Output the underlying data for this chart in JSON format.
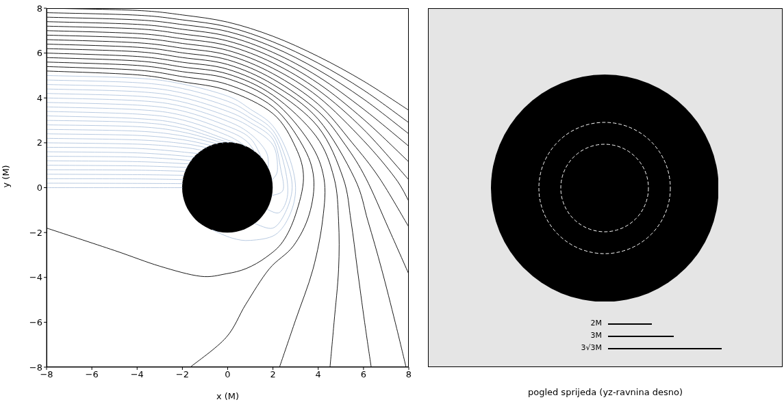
{
  "chart_data": [
    {
      "type": "line",
      "xlabel": "x (M)",
      "ylabel": "y (M)",
      "xlim": [
        -8,
        8
      ],
      "ylim": [
        -8,
        8
      ],
      "xticks": [
        {
          "value": -8,
          "label": "−8"
        },
        {
          "value": -6,
          "label": "−6"
        },
        {
          "value": -4,
          "label": "−4"
        },
        {
          "value": -2,
          "label": "−2"
        },
        0,
        2,
        4,
        6,
        8
      ],
      "yticks": [
        {
          "value": -8,
          "label": "−8"
        },
        {
          "value": -6,
          "label": "−6"
        },
        {
          "value": -4,
          "label": "−4"
        },
        {
          "value": -2,
          "label": "−2"
        },
        0,
        2,
        4,
        6,
        8
      ],
      "series": [
        {
          "color": "#000000",
          "x": [
            -8,
            -4,
            -2,
            0,
            2,
            4,
            6,
            8
          ],
          "values": [
            8,
            7.9,
            7.7,
            7.38,
            6.75,
            5.85,
            4.75,
            3.45
          ]
        },
        {
          "color": "#000000",
          "x": [
            -8,
            -4,
            -2,
            0,
            2,
            4,
            6,
            8
          ],
          "values": [
            7.8,
            7.69,
            7.48,
            7.17,
            6.5,
            5.55,
            4.35,
            2.9
          ]
        },
        {
          "color": "#000000",
          "x": [
            -8,
            -4,
            -2,
            0,
            2,
            4,
            6,
            8
          ],
          "values": [
            7.6,
            7.48,
            7.27,
            6.96,
            6.27,
            5.25,
            3.95,
            2.4
          ]
        },
        {
          "color": "#000000",
          "x": [
            -8,
            -4,
            -2,
            0,
            2,
            4,
            6,
            8
          ],
          "values": [
            7.4,
            7.28,
            7.06,
            6.75,
            6.03,
            4.95,
            3.5,
            1.85
          ]
        },
        {
          "color": "#000000",
          "x": [
            -8,
            -4,
            -2,
            0,
            2,
            4,
            6,
            8
          ],
          "values": [
            7.2,
            7.08,
            6.85,
            6.54,
            5.8,
            4.65,
            3.05,
            1.15
          ]
        },
        {
          "color": "#000000",
          "x": [
            -8,
            -4,
            -2,
            0,
            2,
            4,
            6,
            8
          ],
          "values": [
            7,
            6.87,
            6.64,
            6.33,
            5.56,
            4.35,
            2.6,
            0.35
          ]
        },
        {
          "color": "#000000",
          "x": [
            -8,
            -4,
            -2,
            0,
            2,
            4,
            6,
            7.4,
            8
          ],
          "values": [
            6.8,
            6.67,
            6.43,
            6.12,
            5.32,
            4.05,
            2.1,
            0.43,
            -0.6
          ]
        },
        {
          "color": "#000000",
          "x": [
            -8,
            -4,
            -2,
            0,
            2,
            4,
            5.5,
            6.7,
            8
          ],
          "values": [
            6.6,
            6.46,
            6.22,
            5.91,
            5.08,
            3.72,
            2.0,
            0.43,
            -1.75
          ]
        },
        {
          "color": "#000000",
          "x": [
            -8,
            -4,
            -2,
            0,
            2,
            4,
            5.2,
            6.1,
            7.1,
            8
          ],
          "values": [
            6.4,
            6.26,
            6.01,
            5.7,
            4.84,
            3.4,
            1.9,
            0.43,
            -1.8,
            -3.85
          ]
        },
        {
          "color": "#000000",
          "x": [
            -8,
            -4,
            -2,
            0,
            2,
            4,
            5.6,
            6.2,
            6.8,
            7.4,
            7.88
          ],
          "values": [
            6.2,
            6.06,
            5.8,
            5.49,
            4.6,
            3.05,
            0.43,
            -1.5,
            -3.63,
            -6,
            -8
          ]
        },
        {
          "color": "#000000",
          "x": [
            -8,
            -4,
            -2,
            0,
            2,
            4,
            5.1,
            5.45,
            5.73,
            6.05,
            6.34
          ],
          "values": [
            6,
            5.85,
            5.59,
            5.28,
            4.36,
            2.7,
            0.43,
            -1.5,
            -3.63,
            -6,
            -8
          ]
        },
        {
          "color": "#000000",
          "x": [
            -8,
            -4,
            -2,
            0,
            2,
            3.9,
            4.7,
            4.9,
            4.9,
            4.7,
            4.52
          ],
          "values": [
            5.8,
            5.65,
            5.38,
            5.07,
            4.12,
            2.3,
            0.43,
            -1.5,
            -3.63,
            -6,
            -8
          ]
        },
        {
          "color": "#000000",
          "x": [
            -8,
            -4,
            -2,
            0,
            2,
            3.6,
            4.25,
            4.2,
            3.77,
            3.0,
            2.29
          ],
          "values": [
            5.6,
            5.45,
            5.17,
            4.86,
            3.88,
            2.05,
            0.43,
            -1.4,
            -3.63,
            -5.9,
            -8
          ]
        },
        {
          "color": "#000000",
          "x": [
            -8,
            -4,
            -2,
            0,
            2,
            3.3,
            3.8,
            3.6,
            2.9,
            1.83,
            0.8,
            -0.07,
            -1.65
          ],
          "values": [
            5.4,
            5.24,
            4.95,
            4.6,
            3.6,
            1.9,
            0.43,
            -1.2,
            -2.6,
            -3.63,
            -5.2,
            -6.68,
            -8
          ]
        },
        {
          "color": "#000000",
          "x": [
            -8,
            -4,
            -2,
            0,
            2,
            3.0,
            3.35,
            3.0,
            2.44,
            1.7,
            0.83,
            -0.07,
            -1.2,
            -3,
            -5,
            -8
          ],
          "values": [
            5.2,
            5.03,
            4.72,
            4.33,
            3.3,
            1.8,
            0.43,
            -1.2,
            -2.4,
            -3.1,
            -3.6,
            -3.84,
            -3.95,
            -3.5,
            -2.8,
            -1.8
          ]
        },
        {
          "color": "#b0c4de",
          "x": [
            -8,
            -2
          ],
          "values": [
            0,
            0
          ]
        },
        {
          "color": "#b0c4de",
          "x": [
            -8,
            -4,
            -1.99
          ],
          "values": [
            0.2,
            0.19,
            0.18
          ]
        },
        {
          "color": "#b0c4de",
          "x": [
            -8,
            -4,
            -1.96
          ],
          "values": [
            0.4,
            0.39,
            0.36
          ]
        },
        {
          "color": "#b0c4de",
          "x": [
            -8,
            -4,
            -1.92
          ],
          "values": [
            0.6,
            0.58,
            0.55
          ]
        },
        {
          "color": "#b0c4de",
          "x": [
            -8,
            -4,
            -1.86
          ],
          "values": [
            0.8,
            0.78,
            0.73
          ]
        },
        {
          "color": "#b0c4de",
          "x": [
            -8,
            -4,
            -1.79
          ],
          "values": [
            1,
            0.97,
            0.9
          ]
        },
        {
          "color": "#b0c4de",
          "x": [
            -8,
            -4,
            -1.7
          ],
          "values": [
            1.2,
            1.16,
            1.06
          ]
        },
        {
          "color": "#b0c4de",
          "x": [
            -8,
            -4,
            -1.59
          ],
          "values": [
            1.4,
            1.36,
            1.21
          ]
        },
        {
          "color": "#b0c4de",
          "x": [
            -8,
            -4,
            -1.46
          ],
          "values": [
            1.6,
            1.55,
            1.37
          ]
        },
        {
          "color": "#b0c4de",
          "x": [
            -8,
            -4,
            -1.3
          ],
          "values": [
            1.8,
            1.75,
            1.52
          ]
        },
        {
          "color": "#b0c4de",
          "x": [
            -8,
            -4,
            -2,
            -1.12
          ],
          "values": [
            2,
            1.94,
            1.8,
            1.66
          ]
        },
        {
          "color": "#b0c4de",
          "x": [
            -8,
            -4,
            -2,
            -0.92
          ],
          "values": [
            2.2,
            2.13,
            1.97,
            1.78
          ]
        },
        {
          "color": "#b0c4de",
          "x": [
            -8,
            -4,
            -2,
            -0.7
          ],
          "values": [
            2.4,
            2.33,
            2.14,
            1.87
          ]
        },
        {
          "color": "#b0c4de",
          "x": [
            -8,
            -4,
            -2,
            -0.45
          ],
          "values": [
            2.6,
            2.52,
            2.31,
            1.95
          ]
        },
        {
          "color": "#b0c4de",
          "x": [
            -8,
            -4,
            -2,
            -0.2
          ],
          "values": [
            2.8,
            2.72,
            2.48,
            1.99
          ]
        },
        {
          "color": "#b0c4de",
          "x": [
            -8,
            -4,
            -2,
            0.05
          ],
          "values": [
            3,
            2.91,
            2.65,
            2.0
          ]
        },
        {
          "color": "#b0c4de",
          "x": [
            -8,
            -4,
            -2,
            0,
            0.35
          ],
          "values": [
            3.2,
            3.08,
            2.82,
            2.12,
            1.97
          ]
        },
        {
          "color": "#b0c4de",
          "x": [
            -8,
            -4,
            -2,
            0,
            0.8
          ],
          "values": [
            3.4,
            3.28,
            3.02,
            2.32,
            1.83
          ]
        },
        {
          "color": "#b0c4de",
          "x": [
            -8,
            -4,
            -2,
            0,
            0.8,
            1.2
          ],
          "values": [
            3.6,
            3.48,
            3.22,
            2.53,
            2.1,
            1.6
          ]
        },
        {
          "color": "#b0c4de",
          "x": [
            -8,
            -4,
            -2,
            0,
            1,
            1.5
          ],
          "values": [
            3.8,
            3.68,
            3.42,
            2.74,
            2.2,
            1.32
          ]
        },
        {
          "color": "#b0c4de",
          "x": [
            -8,
            -4,
            -2,
            0,
            1,
            1.7,
            1.8
          ],
          "values": [
            4,
            3.88,
            3.62,
            2.96,
            2.4,
            1.6,
            0.87
          ]
        },
        {
          "color": "#b0c4de",
          "x": [
            -8,
            -4,
            -2,
            0,
            1,
            2,
            2.2,
            1.97
          ],
          "values": [
            4.2,
            4.08,
            3.82,
            3.18,
            2.7,
            1.9,
            0.8,
            0.35
          ]
        },
        {
          "color": "#b0c4de",
          "x": [
            -8,
            -4,
            -2,
            0,
            1,
            2,
            2.35,
            2.45,
            1.97
          ],
          "values": [
            4.4,
            4.28,
            4.02,
            3.4,
            2.9,
            2.15,
            0.8,
            -0.1,
            -0.35
          ]
        },
        {
          "color": "#b0c4de",
          "x": [
            -8,
            -4,
            -2,
            0,
            1,
            2,
            2.5,
            2.65,
            2.3,
            1.75
          ],
          "values": [
            4.6,
            4.48,
            4.22,
            3.62,
            3.1,
            2.35,
            1.0,
            -0.3,
            -1.1,
            -0.97
          ]
        },
        {
          "color": "#b0c4de",
          "x": [
            -8,
            -4,
            -2,
            0,
            1,
            2,
            2.6,
            2.85,
            2.55,
            2.0,
            1.2
          ],
          "values": [
            4.8,
            4.68,
            4.42,
            3.85,
            3.3,
            2.55,
            1.2,
            0,
            -1.1,
            -1.8,
            -1.6
          ]
        },
        {
          "color": "#b0c4de",
          "x": [
            -8,
            -4,
            -2,
            0,
            1,
            2,
            2.7,
            3.0,
            2.75,
            2.1,
            1.0,
            0.2,
            -0.68
          ],
          "values": [
            5,
            4.88,
            4.62,
            4.08,
            3.5,
            2.75,
            1.4,
            0,
            -1.2,
            -2.1,
            -2.35,
            -2.25,
            -1.88
          ]
        }
      ]
    },
    {
      "type": "other",
      "xlabel": "pogled sprijeda (yz-ravnina desno)",
      "annotations": [
        "2M",
        "3M",
        "3√3M"
      ]
    }
  ]
}
